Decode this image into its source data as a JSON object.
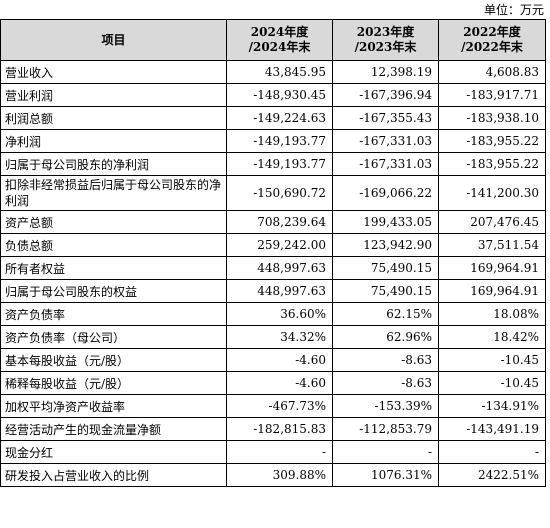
{
  "unit_label": "单位：万元",
  "header": {
    "item": "项目",
    "col_2024_line1": "2024年度",
    "col_2024_line2": "/2024年末",
    "col_2023_line1": "2023年度",
    "col_2023_line2": "/2023年末",
    "col_2022_line1": "2022年度",
    "col_2022_line2": "/2022年末"
  },
  "rows": [
    {
      "label": "营业收入",
      "v2024": "43,845.95",
      "v2023": "12,398.19",
      "v2022": "4,608.83"
    },
    {
      "label": "营业利润",
      "v2024": "-148,930.45",
      "v2023": "-167,396.94",
      "v2022": "-183,917.71"
    },
    {
      "label": "利润总额",
      "v2024": "-149,224.63",
      "v2023": "-167,355.43",
      "v2022": "-183,938.10"
    },
    {
      "label": "净利润",
      "v2024": "-149,193.77",
      "v2023": "-167,331.03",
      "v2022": "-183,955.22"
    },
    {
      "label": "归属于母公司股东的净利润",
      "v2024": "-149,193.77",
      "v2023": "-167,331.03",
      "v2022": "-183,955.22"
    },
    {
      "label": "扣除非经常损益后归属于母公司股东的净利润",
      "v2024": "-150,690.72",
      "v2023": "-169,066.22",
      "v2022": "-141,200.30"
    },
    {
      "label": "资产总额",
      "v2024": "708,239.64",
      "v2023": "199,433.05",
      "v2022": "207,476.45"
    },
    {
      "label": "负债总额",
      "v2024": "259,242.00",
      "v2023": "123,942.90",
      "v2022": "37,511.54"
    },
    {
      "label": "所有者权益",
      "v2024": "448,997.63",
      "v2023": "75,490.15",
      "v2022": "169,964.91"
    },
    {
      "label": "归属于母公司股东的权益",
      "v2024": "448,997.63",
      "v2023": "75,490.15",
      "v2022": "169,964.91"
    },
    {
      "label": "资产负债率",
      "v2024": "36.60%",
      "v2023": "62.15%",
      "v2022": "18.08%"
    },
    {
      "label": "资产负债率（母公司）",
      "v2024": "34.32%",
      "v2023": "62.96%",
      "v2022": "18.42%"
    },
    {
      "label": "基本每股收益（元/股）",
      "v2024": "-4.60",
      "v2023": "-8.63",
      "v2022": "-10.45"
    },
    {
      "label": "稀释每股收益（元/股）",
      "v2024": "-4.60",
      "v2023": "-8.63",
      "v2022": "-10.45"
    },
    {
      "label": "加权平均净资产收益率",
      "v2024": "-467.73%",
      "v2023": "-153.39%",
      "v2022": "-134.91%"
    },
    {
      "label": "经营活动产生的现金流量净额",
      "v2024": "-182,815.83",
      "v2023": "-112,853.79",
      "v2022": "-143,491.19"
    },
    {
      "label": "现金分红",
      "v2024": "-",
      "v2023": "-",
      "v2022": "-"
    },
    {
      "label": "研发投入占营业收入的比例",
      "v2024": "309.88%",
      "v2023": "1076.31%",
      "v2022": "2422.51%"
    }
  ]
}
